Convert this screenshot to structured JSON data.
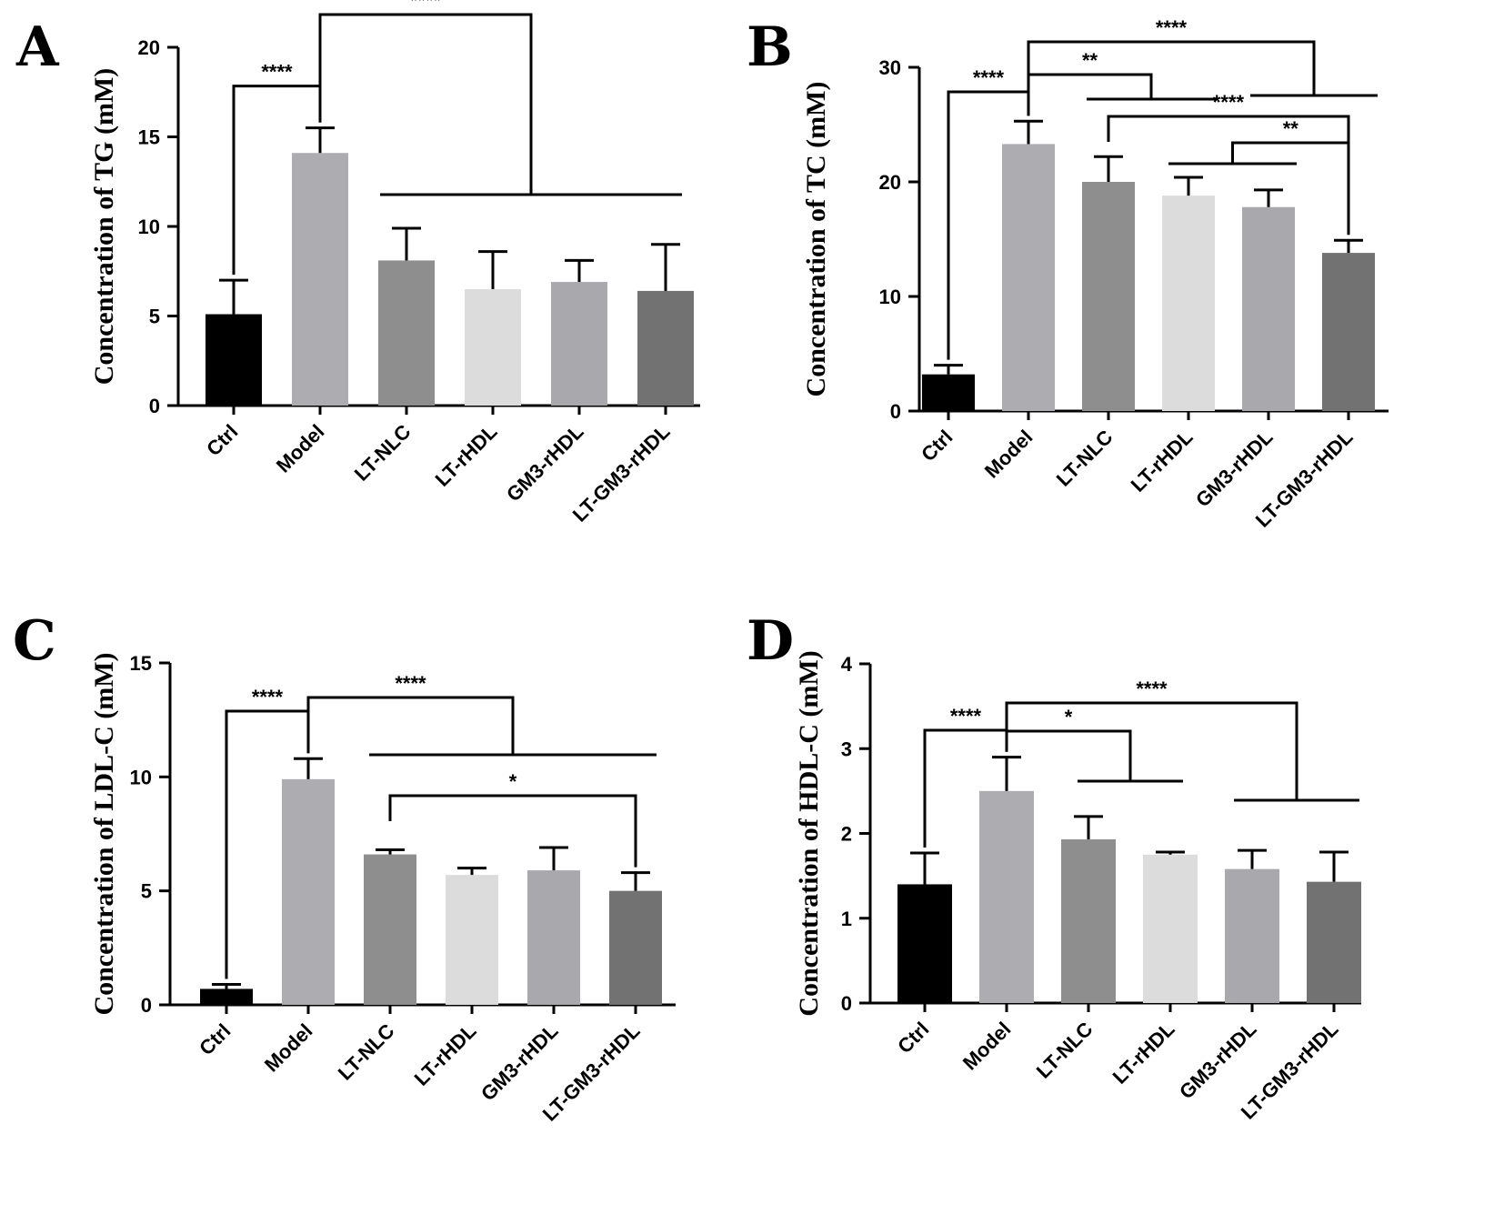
{
  "colors": {
    "Ctrl": "#000000",
    "Model": "#adadb1",
    "LT-NLC": "#8e8e8e",
    "LT-rHDL": "#dcdcdc",
    "GM3-rHDL": "#a9a9ad",
    "LT-GM3-rHDL": "#727272"
  },
  "chart_data": [
    {
      "panel": "A",
      "type": "bar",
      "ylabel": "Concentration of TG (mM)",
      "ylim": [
        0,
        20
      ],
      "yticks": [
        0,
        5,
        10,
        15,
        20
      ],
      "categories": [
        "Ctrl",
        "Model",
        "LT-NLC",
        "LT-rHDL",
        "GM3-rHDL",
        "LT-GM3-rHDL"
      ],
      "values": [
        5.1,
        14.1,
        8.1,
        6.5,
        6.9,
        6.4
      ],
      "errors": [
        1.9,
        1.4,
        1.8,
        2.1,
        1.2,
        2.6
      ],
      "significance": [
        {
          "from": "Ctrl",
          "to": "Model",
          "label": "****"
        },
        {
          "from": "Model",
          "to": "LT-NLC…LT-GM3-rHDL",
          "label": "****"
        }
      ]
    },
    {
      "panel": "B",
      "type": "bar",
      "ylabel": "Concentration of TC (mM)",
      "ylim": [
        0,
        30
      ],
      "yticks": [
        0,
        10,
        20,
        30
      ],
      "categories": [
        "Ctrl",
        "Model",
        "LT-NLC",
        "LT-rHDL",
        "GM3-rHDL",
        "LT-GM3-rHDL"
      ],
      "values": [
        3.2,
        23.3,
        20.0,
        18.8,
        17.8,
        13.8
      ],
      "errors": [
        0.8,
        2.0,
        2.2,
        1.6,
        1.5,
        1.1
      ],
      "significance": [
        {
          "from": "Ctrl",
          "to": "Model",
          "label": "****"
        },
        {
          "from": "Model",
          "to": "LT-NLC, LT-rHDL",
          "label": "**"
        },
        {
          "from": "Model",
          "to": "GM3-rHDL, LT-GM3-rHDL",
          "label": "****"
        },
        {
          "from": "LT-NLC",
          "to": "LT-GM3-rHDL",
          "label": "****"
        },
        {
          "from": "LT-rHDL, GM3-rHDL",
          "to": "LT-GM3-rHDL",
          "label": "**"
        }
      ]
    },
    {
      "panel": "C",
      "type": "bar",
      "ylabel": "Concentration of LDL-C (mM)",
      "ylim": [
        0,
        15
      ],
      "yticks": [
        0,
        5,
        10,
        15
      ],
      "categories": [
        "Ctrl",
        "Model",
        "LT-NLC",
        "LT-rHDL",
        "GM3-rHDL",
        "LT-GM3-rHDL"
      ],
      "values": [
        0.7,
        9.9,
        6.6,
        5.7,
        5.9,
        5.0
      ],
      "errors": [
        0.2,
        0.9,
        0.2,
        0.3,
        1.0,
        0.8
      ],
      "significance": [
        {
          "from": "Ctrl",
          "to": "Model",
          "label": "****"
        },
        {
          "from": "Model",
          "to": "LT-NLC…LT-GM3-rHDL",
          "label": "****"
        },
        {
          "from": "LT-NLC",
          "to": "LT-GM3-rHDL",
          "label": "*"
        }
      ]
    },
    {
      "panel": "D",
      "type": "bar",
      "ylabel": "Concentration of HDL-C (mM)",
      "ylim": [
        0,
        4
      ],
      "yticks": [
        0,
        1,
        2,
        3,
        4
      ],
      "categories": [
        "Ctrl",
        "Model",
        "LT-NLC",
        "LT-rHDL",
        "GM3-rHDL",
        "LT-GM3-rHDL"
      ],
      "values": [
        1.4,
        2.5,
        1.93,
        1.75,
        1.58,
        1.43
      ],
      "errors": [
        0.37,
        0.4,
        0.27,
        0.03,
        0.22,
        0.35
      ],
      "significance": [
        {
          "from": "Ctrl",
          "to": "Model",
          "label": "****"
        },
        {
          "from": "Model",
          "to": "LT-NLC, LT-rHDL",
          "label": "*"
        },
        {
          "from": "Model",
          "to": "GM3-rHDL, LT-GM3-rHDL",
          "label": "****"
        }
      ]
    }
  ]
}
